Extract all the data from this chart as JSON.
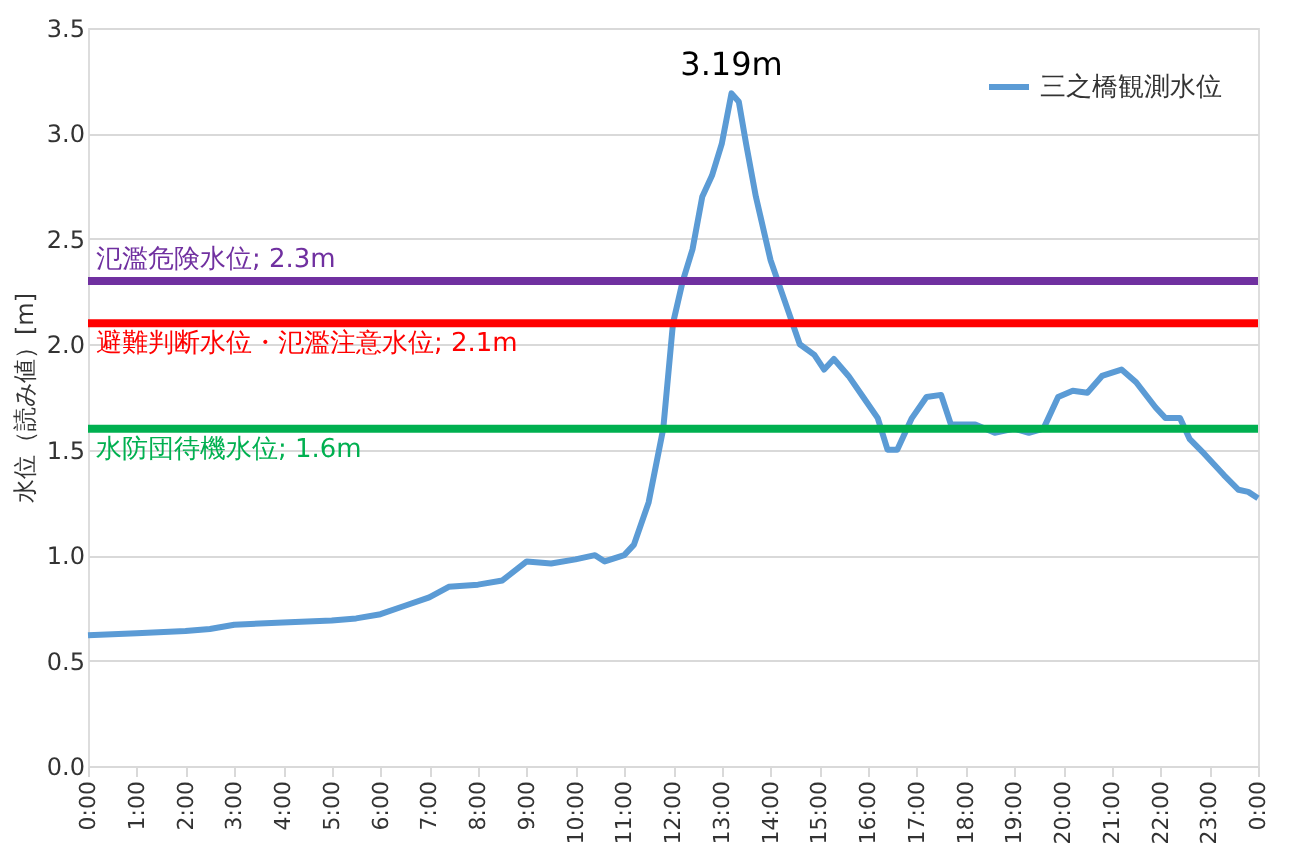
{
  "chart_data": {
    "type": "line",
    "ylabel": "水位（読み値）[m]",
    "x": [
      0,
      1,
      2,
      2.5,
      3,
      4,
      5,
      5.5,
      6,
      6.5,
      7,
      7.4,
      8,
      8.5,
      9,
      9.5,
      10,
      10.4,
      10.6,
      11,
      11.2,
      11.5,
      11.8,
      12.0,
      12.2,
      12.4,
      12.6,
      12.8,
      13.0,
      13.2,
      13.35,
      13.5,
      13.7,
      14.0,
      14.3,
      14.6,
      14.9,
      15.1,
      15.3,
      15.6,
      15.9,
      16.2,
      16.4,
      16.6,
      16.9,
      17.2,
      17.5,
      17.7,
      18.2,
      18.6,
      19.0,
      19.3,
      19.6,
      19.9,
      20.2,
      20.5,
      20.8,
      21.2,
      21.5,
      21.9,
      22.1,
      22.4,
      22.6,
      22.9,
      23.3,
      23.6,
      23.8,
      24
    ],
    "series": [
      {
        "name": "三之橋観測水位",
        "color": "#5b9bd5",
        "values": [
          0.62,
          0.63,
          0.64,
          0.65,
          0.67,
          0.68,
          0.69,
          0.7,
          0.72,
          0.76,
          0.8,
          0.85,
          0.86,
          0.88,
          0.97,
          0.96,
          0.98,
          1.0,
          0.97,
          1.0,
          1.05,
          1.25,
          1.6,
          2.1,
          2.3,
          2.45,
          2.7,
          2.8,
          2.95,
          3.19,
          3.15,
          2.95,
          2.7,
          2.4,
          2.2,
          2.0,
          1.95,
          1.88,
          1.93,
          1.85,
          1.75,
          1.65,
          1.5,
          1.5,
          1.65,
          1.75,
          1.76,
          1.62,
          1.62,
          1.58,
          1.6,
          1.58,
          1.6,
          1.75,
          1.78,
          1.77,
          1.85,
          1.88,
          1.82,
          1.7,
          1.65,
          1.65,
          1.55,
          1.48,
          1.38,
          1.31,
          1.3,
          1.27
        ]
      }
    ],
    "xlim": [
      0,
      24
    ],
    "xticks": [
      {
        "value": 0,
        "label": "0:00"
      },
      {
        "value": 1,
        "label": "1:00"
      },
      {
        "value": 2,
        "label": "2:00"
      },
      {
        "value": 3,
        "label": "3:00"
      },
      {
        "value": 4,
        "label": "4:00"
      },
      {
        "value": 5,
        "label": "5:00"
      },
      {
        "value": 6,
        "label": "6:00"
      },
      {
        "value": 7,
        "label": "7:00"
      },
      {
        "value": 8,
        "label": "8:00"
      },
      {
        "value": 9,
        "label": "9:00"
      },
      {
        "value": 10,
        "label": "10:00"
      },
      {
        "value": 11,
        "label": "11:00"
      },
      {
        "value": 12,
        "label": "12:00"
      },
      {
        "value": 13,
        "label": "13:00"
      },
      {
        "value": 14,
        "label": "14:00"
      },
      {
        "value": 15,
        "label": "15:00"
      },
      {
        "value": 16,
        "label": "16:00"
      },
      {
        "value": 17,
        "label": "17:00"
      },
      {
        "value": 18,
        "label": "18:00"
      },
      {
        "value": 19,
        "label": "19:00"
      },
      {
        "value": 20,
        "label": "20:00"
      },
      {
        "value": 21,
        "label": "21:00"
      },
      {
        "value": 22,
        "label": "22:00"
      },
      {
        "value": 23,
        "label": "23:00"
      },
      {
        "value": 24,
        "label": "0:00"
      }
    ],
    "ylim": [
      0,
      3.5
    ],
    "yticks": [
      {
        "value": 0,
        "label": "0.0"
      },
      0.5,
      {
        "value": 1,
        "label": "1.0"
      },
      1.5,
      {
        "value": 2,
        "label": "2.0"
      },
      2.5,
      {
        "value": 3,
        "label": "3.0"
      },
      3.5
    ],
    "ref_lines": [
      {
        "axis": "y",
        "value": 2.3,
        "label": "氾濫危険水位; 2.3m",
        "color": "#7030a0"
      },
      {
        "axis": "y",
        "value": 2.1,
        "label": "避難判断水位・氾濫注意水位; 2.1m",
        "color": "#ff0000"
      },
      {
        "axis": "y",
        "value": 1.6,
        "label": "水防団待機水位; 1.6m",
        "color": "#00b050"
      }
    ],
    "annotations": [
      {
        "text": "3.19m",
        "x": 13.2,
        "y": 3.19
      }
    ],
    "grid": "y",
    "legend": "top right",
    "line_style": "solid",
    "marker": "none"
  }
}
